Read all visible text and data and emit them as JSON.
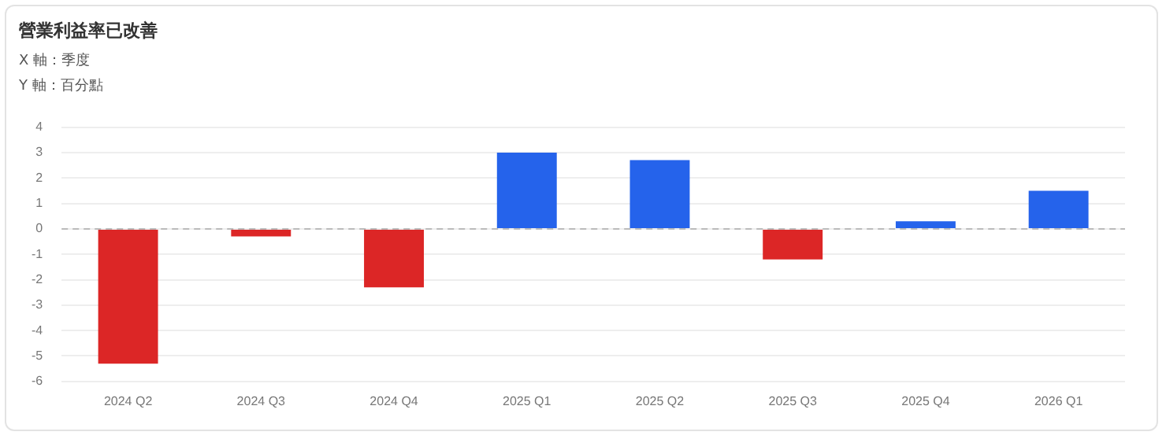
{
  "chart_data": {
    "type": "bar",
    "title": "營業利益率已改善",
    "annotations": [
      "X 軸：季度",
      "Y 軸：百分點"
    ],
    "categories": [
      "2024 Q2",
      "2024 Q3",
      "2024 Q4",
      "2025 Q1",
      "2025 Q2",
      "2025 Q3",
      "2025 Q4",
      "2026 Q1"
    ],
    "values": [
      -5.3,
      -0.3,
      -2.3,
      3.0,
      2.7,
      -1.2,
      0.3,
      1.5
    ],
    "colors": [
      "#dc2626",
      "#dc2626",
      "#dc2626",
      "#2563eb",
      "#2563eb",
      "#dc2626",
      "#2563eb",
      "#2563eb"
    ],
    "ylim": [
      -6,
      4
    ],
    "yticks": [
      -6,
      -5,
      -4,
      -3,
      -2,
      -1,
      0,
      1,
      2,
      3,
      4
    ],
    "grid": "y",
    "legend": false,
    "ref_lines": [
      {
        "axis": "y",
        "value": 0,
        "color": "#bbbbbb",
        "line_style": "dashed"
      }
    ]
  }
}
